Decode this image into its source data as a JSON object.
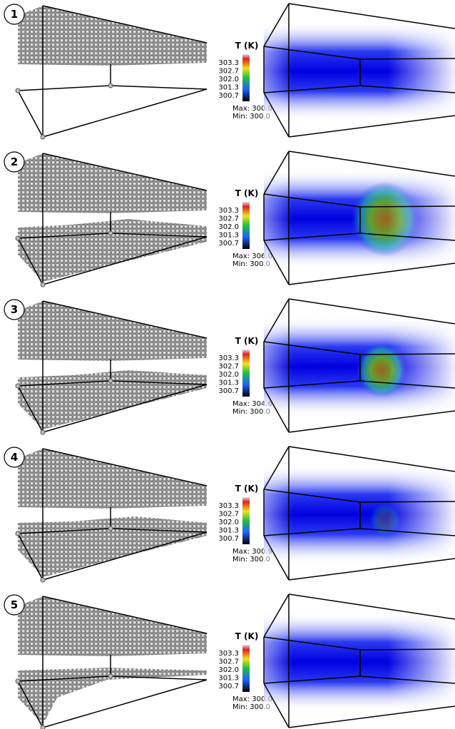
{
  "panels": [
    {
      "label": "1",
      "colorbar": {
        "title": "T (K)",
        "ticks": [
          "303.3",
          "302.7",
          "302.0",
          "301.3",
          "300.7"
        ],
        "max": "Max:  300.0",
        "min": "Min:  300.0"
      }
    },
    {
      "label": "2",
      "colorbar": {
        "title": "T (K)",
        "ticks": [
          "303.3",
          "302.7",
          "302.0",
          "301.3",
          "300.7"
        ],
        "max": "Max:  306.0",
        "min": "Min:  300.0"
      }
    },
    {
      "label": "3",
      "colorbar": {
        "title": "T (K)",
        "ticks": [
          "303.3",
          "302.7",
          "302.0",
          "301.3",
          "300.7"
        ],
        "max": "Max:  304.6",
        "min": "Min:  300.0"
      }
    },
    {
      "label": "4",
      "colorbar": {
        "title": "T (K)",
        "ticks": [
          "303.3",
          "302.7",
          "302.0",
          "301.3",
          "300.7"
        ],
        "max": "Max:  300.9",
        "min": "Min:  300.0"
      }
    },
    {
      "label": "5",
      "colorbar": {
        "title": "T (K)",
        "ticks": [
          "303.3",
          "302.7",
          "302.0",
          "301.3",
          "300.7"
        ],
        "max": "Max:  300.0",
        "min": "Min:  300.0"
      }
    }
  ]
}
